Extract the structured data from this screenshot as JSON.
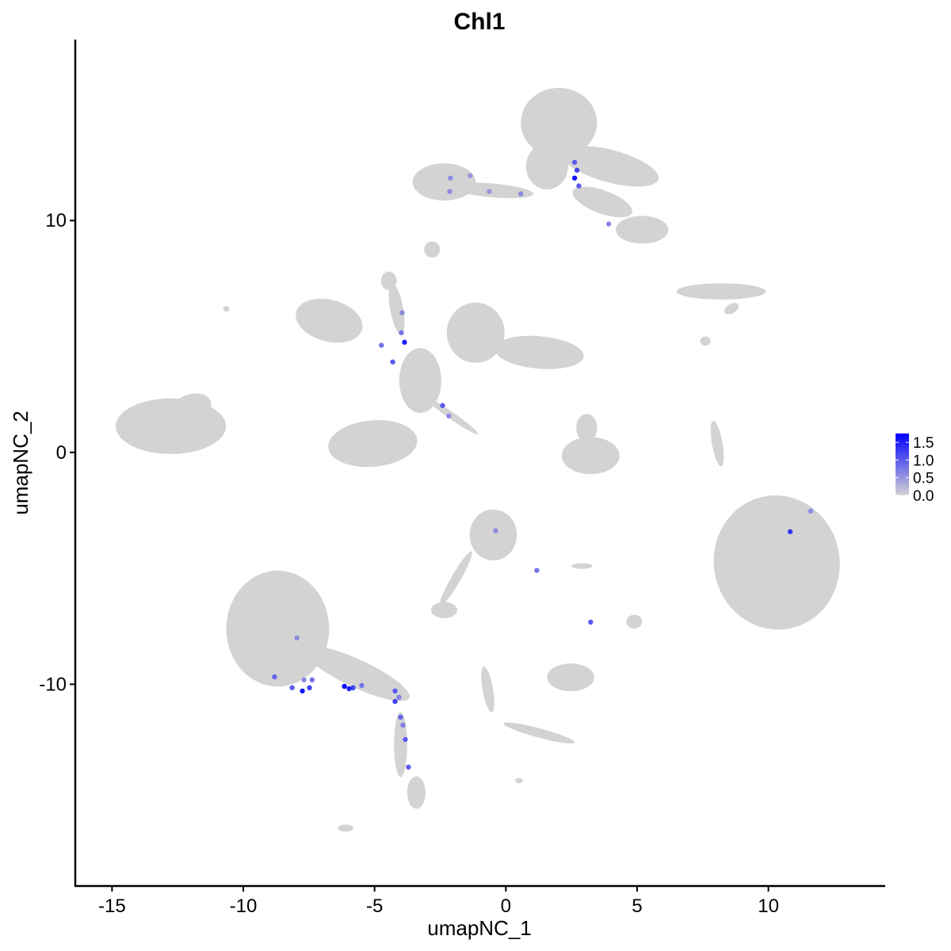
{
  "chart_data": {
    "type": "scatter",
    "title": "Chl1",
    "xlabel": "umapNC_1",
    "ylabel": "umapNC_2",
    "xlim": [
      -16.4,
      14.45
    ],
    "ylim": [
      -18.7,
      17.8
    ],
    "xticks": [
      -15,
      -10,
      -5,
      0,
      5,
      10
    ],
    "xtick_labels": [
      "-15",
      "-10",
      "-5",
      "0",
      "5",
      "10"
    ],
    "yticks": [
      -10,
      0,
      10
    ],
    "ytick_labels": [
      "-10",
      "0",
      "10"
    ],
    "grid": false,
    "legend": {
      "placement": "right",
      "type": "colorbar",
      "range": [
        0,
        1.75
      ],
      "ticks": [
        0,
        0.5,
        1.0,
        1.5
      ],
      "tick_labels": [
        "0.0",
        "0.5",
        "1.0",
        "1.5"
      ],
      "low_color": "#d3d3d3",
      "high_color": "#0000ff"
    },
    "background_color": "#d3d3d3",
    "background_clusters": [
      {
        "cx": -12.76,
        "cy": 1.13,
        "rx": 2.1,
        "ry": 1.2,
        "angle": 0
      },
      {
        "cx": -12.0,
        "cy": 1.9,
        "rx": 0.8,
        "ry": 0.6,
        "angle": 20
      },
      {
        "cx": 2.02,
        "cy": 14.22,
        "rx": 1.45,
        "ry": 1.5,
        "angle": 0
      },
      {
        "cx": 3.98,
        "cy": 12.34,
        "rx": 1.9,
        "ry": 0.7,
        "angle": -15
      },
      {
        "cx": 5.19,
        "cy": 9.6,
        "rx": 1.0,
        "ry": 0.6,
        "angle": 0
      },
      {
        "cx": 3.68,
        "cy": 10.8,
        "rx": 1.2,
        "ry": 0.5,
        "angle": -20
      },
      {
        "cx": 1.57,
        "cy": 12.34,
        "rx": 0.8,
        "ry": 1.0,
        "angle": 0
      },
      {
        "cx": -2.35,
        "cy": 11.66,
        "rx": 1.2,
        "ry": 0.8,
        "angle": 0
      },
      {
        "cx": -0.54,
        "cy": 11.3,
        "rx": 1.6,
        "ry": 0.3,
        "angle": -5
      },
      {
        "cx": -2.81,
        "cy": 8.75,
        "rx": 0.3,
        "ry": 0.35,
        "angle": 0
      },
      {
        "cx": -6.73,
        "cy": 5.68,
        "rx": 1.3,
        "ry": 0.9,
        "angle": -15
      },
      {
        "cx": -1.15,
        "cy": 5.16,
        "rx": 1.1,
        "ry": 1.3,
        "angle": 0
      },
      {
        "cx": 1.27,
        "cy": 4.31,
        "rx": 1.7,
        "ry": 0.7,
        "angle": -5
      },
      {
        "cx": -5.07,
        "cy": 0.38,
        "rx": 1.7,
        "ry": 1.0,
        "angle": 5
      },
      {
        "cx": -3.26,
        "cy": 3.1,
        "rx": 0.8,
        "ry": 1.4,
        "angle": 0
      },
      {
        "cx": -4.16,
        "cy": 6.19,
        "rx": 0.25,
        "ry": 1.1,
        "angle": 10
      },
      {
        "cx": -4.46,
        "cy": 7.4,
        "rx": 0.3,
        "ry": 0.4,
        "angle": 0
      },
      {
        "cx": -2.05,
        "cy": 1.57,
        "rx": 1.2,
        "ry": 0.15,
        "angle": -35
      },
      {
        "cx": 3.23,
        "cy": -0.14,
        "rx": 1.1,
        "ry": 0.8,
        "angle": 0
      },
      {
        "cx": 3.08,
        "cy": 1.06,
        "rx": 0.4,
        "ry": 0.6,
        "angle": 0
      },
      {
        "cx": 8.2,
        "cy": 6.94,
        "rx": 1.7,
        "ry": 0.35,
        "angle": 0
      },
      {
        "cx": 8.05,
        "cy": 0.38,
        "rx": 0.2,
        "ry": 1.0,
        "angle": 10
      },
      {
        "cx": 10.32,
        "cy": -4.75,
        "rx": 2.4,
        "ry": 2.9,
        "angle": 10
      },
      {
        "cx": -0.48,
        "cy": -3.56,
        "rx": 0.9,
        "ry": 1.1,
        "angle": 0
      },
      {
        "cx": -1.9,
        "cy": -5.44,
        "rx": 1.2,
        "ry": 0.2,
        "angle": 60
      },
      {
        "cx": -2.35,
        "cy": -6.8,
        "rx": 0.5,
        "ry": 0.35,
        "angle": 0
      },
      {
        "cx": -8.69,
        "cy": -7.6,
        "rx": 1.96,
        "ry": 2.5,
        "angle": 0
      },
      {
        "cx": -5.67,
        "cy": -9.54,
        "rx": 2.2,
        "ry": 0.6,
        "angle": -25
      },
      {
        "cx": -4.01,
        "cy": -12.6,
        "rx": 0.25,
        "ry": 1.4,
        "angle": 0
      },
      {
        "cx": -3.41,
        "cy": -14.67,
        "rx": 0.35,
        "ry": 0.7,
        "angle": 0
      },
      {
        "cx": 2.47,
        "cy": -9.7,
        "rx": 0.9,
        "ry": 0.6,
        "angle": 0
      },
      {
        "cx": -0.69,
        "cy": -10.22,
        "rx": 0.2,
        "ry": 1.0,
        "angle": 10
      },
      {
        "cx": 1.27,
        "cy": -12.1,
        "rx": 1.4,
        "ry": 0.2,
        "angle": -15
      },
      {
        "cx": 4.89,
        "cy": -7.3,
        "rx": 0.3,
        "ry": 0.3,
        "angle": 0
      },
      {
        "cx": 2.9,
        "cy": -4.9,
        "rx": 0.4,
        "ry": 0.12,
        "angle": 0
      },
      {
        "cx": -6.1,
        "cy": -16.2,
        "rx": 0.3,
        "ry": 0.15,
        "angle": 0
      },
      {
        "cx": 0.5,
        "cy": -14.15,
        "rx": 0.15,
        "ry": 0.12,
        "angle": 0
      },
      {
        "cx": -10.65,
        "cy": 6.19,
        "rx": 0.12,
        "ry": 0.12,
        "angle": 0
      },
      {
        "cx": 7.6,
        "cy": 4.8,
        "rx": 0.2,
        "ry": 0.2,
        "angle": 0
      },
      {
        "cx": 8.6,
        "cy": 6.2,
        "rx": 0.3,
        "ry": 0.2,
        "angle": 30
      }
    ],
    "points": [
      {
        "x": 2.62,
        "y": 12.51,
        "value": 1.0
      },
      {
        "x": 2.62,
        "y": 11.83,
        "value": 1.6
      },
      {
        "x": 2.71,
        "y": 12.17,
        "value": 1.2
      },
      {
        "x": 2.78,
        "y": 11.49,
        "value": 1.0
      },
      {
        "x": 3.92,
        "y": 9.85,
        "value": 0.6
      },
      {
        "x": -2.11,
        "y": 11.83,
        "value": 0.6
      },
      {
        "x": -1.36,
        "y": 11.93,
        "value": 0.5
      },
      {
        "x": -2.14,
        "y": 11.25,
        "value": 0.6
      },
      {
        "x": 0.57,
        "y": 11.15,
        "value": 0.6
      },
      {
        "x": -0.63,
        "y": 11.25,
        "value": 0.5
      },
      {
        "x": -3.86,
        "y": 4.75,
        "value": 1.5
      },
      {
        "x": -4.74,
        "y": 4.62,
        "value": 0.8
      },
      {
        "x": -4.31,
        "y": 3.9,
        "value": 1.0
      },
      {
        "x": -3.98,
        "y": 5.16,
        "value": 0.8
      },
      {
        "x": -3.95,
        "y": 6.02,
        "value": 0.6
      },
      {
        "x": -2.41,
        "y": 2.02,
        "value": 1.0
      },
      {
        "x": -2.17,
        "y": 1.57,
        "value": 0.6
      },
      {
        "x": 11.61,
        "y": -2.53,
        "value": 0.6
      },
      {
        "x": 10.83,
        "y": -3.42,
        "value": 1.3
      },
      {
        "x": -0.39,
        "y": -3.38,
        "value": 0.6
      },
      {
        "x": 1.18,
        "y": -5.09,
        "value": 0.8
      },
      {
        "x": 3.23,
        "y": -7.32,
        "value": 1.0
      },
      {
        "x": -7.96,
        "y": -8.0,
        "value": 0.6
      },
      {
        "x": -8.81,
        "y": -9.68,
        "value": 0.9
      },
      {
        "x": -7.75,
        "y": -10.29,
        "value": 1.6
      },
      {
        "x": -8.14,
        "y": -10.15,
        "value": 1.0
      },
      {
        "x": -7.48,
        "y": -10.15,
        "value": 1.2
      },
      {
        "x": -7.38,
        "y": -9.81,
        "value": 0.8
      },
      {
        "x": -7.69,
        "y": -9.81,
        "value": 0.6
      },
      {
        "x": -6.15,
        "y": -10.09,
        "value": 1.7
      },
      {
        "x": -5.97,
        "y": -10.19,
        "value": 1.5
      },
      {
        "x": -5.82,
        "y": -10.15,
        "value": 1.2
      },
      {
        "x": -5.49,
        "y": -10.05,
        "value": 0.8
      },
      {
        "x": -4.22,
        "y": -10.29,
        "value": 1.0
      },
      {
        "x": -4.22,
        "y": -10.74,
        "value": 1.2
      },
      {
        "x": -4.07,
        "y": -10.56,
        "value": 0.7
      },
      {
        "x": -4.01,
        "y": -11.42,
        "value": 0.9
      },
      {
        "x": -3.92,
        "y": -11.76,
        "value": 0.7
      },
      {
        "x": -3.83,
        "y": -12.38,
        "value": 1.0
      },
      {
        "x": -3.71,
        "y": -13.57,
        "value": 1.0
      }
    ]
  }
}
